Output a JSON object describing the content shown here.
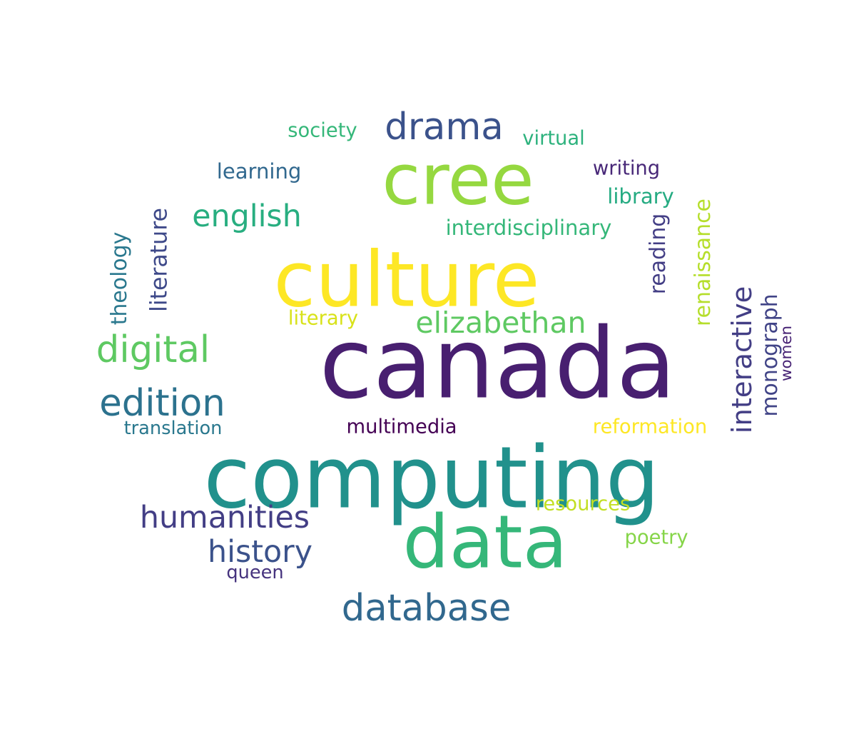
{
  "words": [
    {
      "text": "canada",
      "color": "#481f70"
    },
    {
      "text": "computing",
      "color": "#21918c"
    },
    {
      "text": "culture",
      "color": "#fde725"
    },
    {
      "text": "cree",
      "color": "#95d840"
    },
    {
      "text": "data",
      "color": "#35b779"
    },
    {
      "text": "database",
      "color": "#31688e"
    },
    {
      "text": "drama",
      "color": "#3b528b"
    },
    {
      "text": "edition",
      "color": "#2c728e"
    },
    {
      "text": "digital",
      "color": "#5ec962"
    },
    {
      "text": "humanities",
      "color": "#433e85"
    },
    {
      "text": "history",
      "color": "#3b528b"
    },
    {
      "text": "english",
      "color": "#28ae80"
    },
    {
      "text": "elizabethan",
      "color": "#5ec962"
    },
    {
      "text": "interactive",
      "color": "#433e85"
    },
    {
      "text": "society",
      "color": "#35b779"
    },
    {
      "text": "virtual",
      "color": "#2db27d"
    },
    {
      "text": "learning",
      "color": "#31688e"
    },
    {
      "text": "writing",
      "color": "#482878"
    },
    {
      "text": "library",
      "color": "#25ab82"
    },
    {
      "text": "interdisciplinary",
      "color": "#35b779"
    },
    {
      "text": "reading",
      "color": "#433e85"
    },
    {
      "text": "renaissance",
      "color": "#b5de2b"
    },
    {
      "text": "literature",
      "color": "#3e4989"
    },
    {
      "text": "theology",
      "color": "#2a788e"
    },
    {
      "text": "literary",
      "color": "#d8e219"
    },
    {
      "text": "monograph",
      "color": "#414487"
    },
    {
      "text": "women",
      "color": "#482475"
    },
    {
      "text": "translation",
      "color": "#2a788e"
    },
    {
      "text": "multimedia",
      "color": "#440154"
    },
    {
      "text": "reformation",
      "color": "#fde725"
    },
    {
      "text": "resources",
      "color": "#c2df23"
    },
    {
      "text": "poetry",
      "color": "#86d549"
    },
    {
      "text": "queen",
      "color": "#46337e"
    }
  ]
}
